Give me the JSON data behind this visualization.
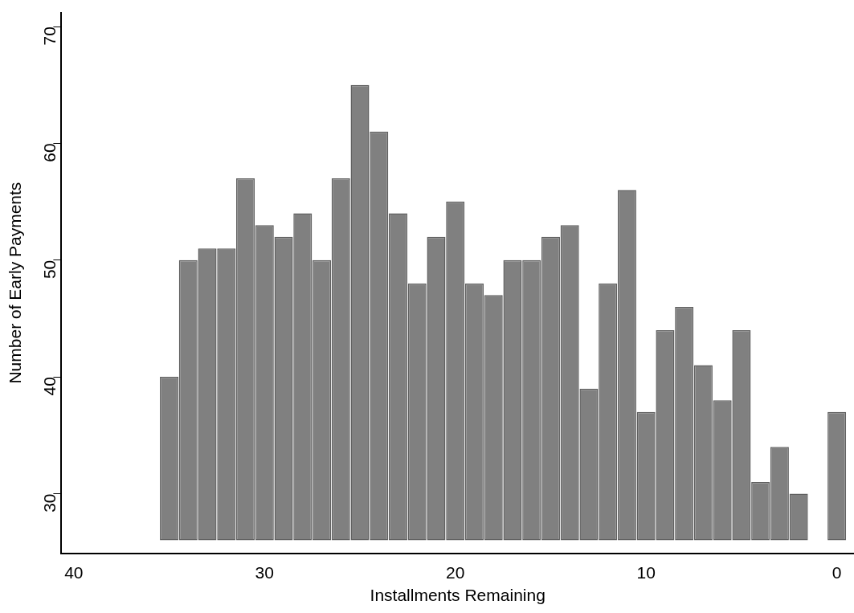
{
  "chart_data": {
    "type": "bar",
    "xlabel": "Installments Remaining",
    "ylabel": "Number of Early Payments",
    "x": [
      35,
      34,
      33,
      32,
      31,
      30,
      29,
      28,
      27,
      26,
      25,
      24,
      23,
      22,
      21,
      20,
      19,
      18,
      17,
      16,
      15,
      14,
      13,
      12,
      11,
      10,
      9,
      8,
      7,
      6,
      5,
      4,
      3,
      2,
      0
    ],
    "values": [
      14,
      24,
      25,
      25,
      31,
      27,
      26,
      28,
      24,
      31,
      39,
      35,
      28,
      22,
      26,
      29,
      22,
      21,
      24,
      24,
      26,
      27,
      13,
      22,
      30,
      11,
      18,
      20,
      15,
      12,
      18,
      5,
      8,
      4,
      11
    ],
    "base": [
      26,
      26,
      26,
      26,
      26,
      26,
      26,
      26,
      26,
      26,
      26,
      26,
      26,
      26,
      26,
      26,
      26,
      26,
      26,
      26,
      26,
      26,
      26,
      26,
      26,
      26,
      26,
      26,
      26,
      26,
      26,
      26,
      26,
      26,
      26
    ],
    "color": "#808080",
    "xlim": [
      40.65,
      -0.9
    ],
    "xticks": [
      40,
      30,
      20,
      10,
      0
    ],
    "ylim": [
      24.9,
      71.2
    ],
    "yticks": [
      30,
      40,
      50,
      60,
      70
    ],
    "grid": false,
    "legend": false
  }
}
